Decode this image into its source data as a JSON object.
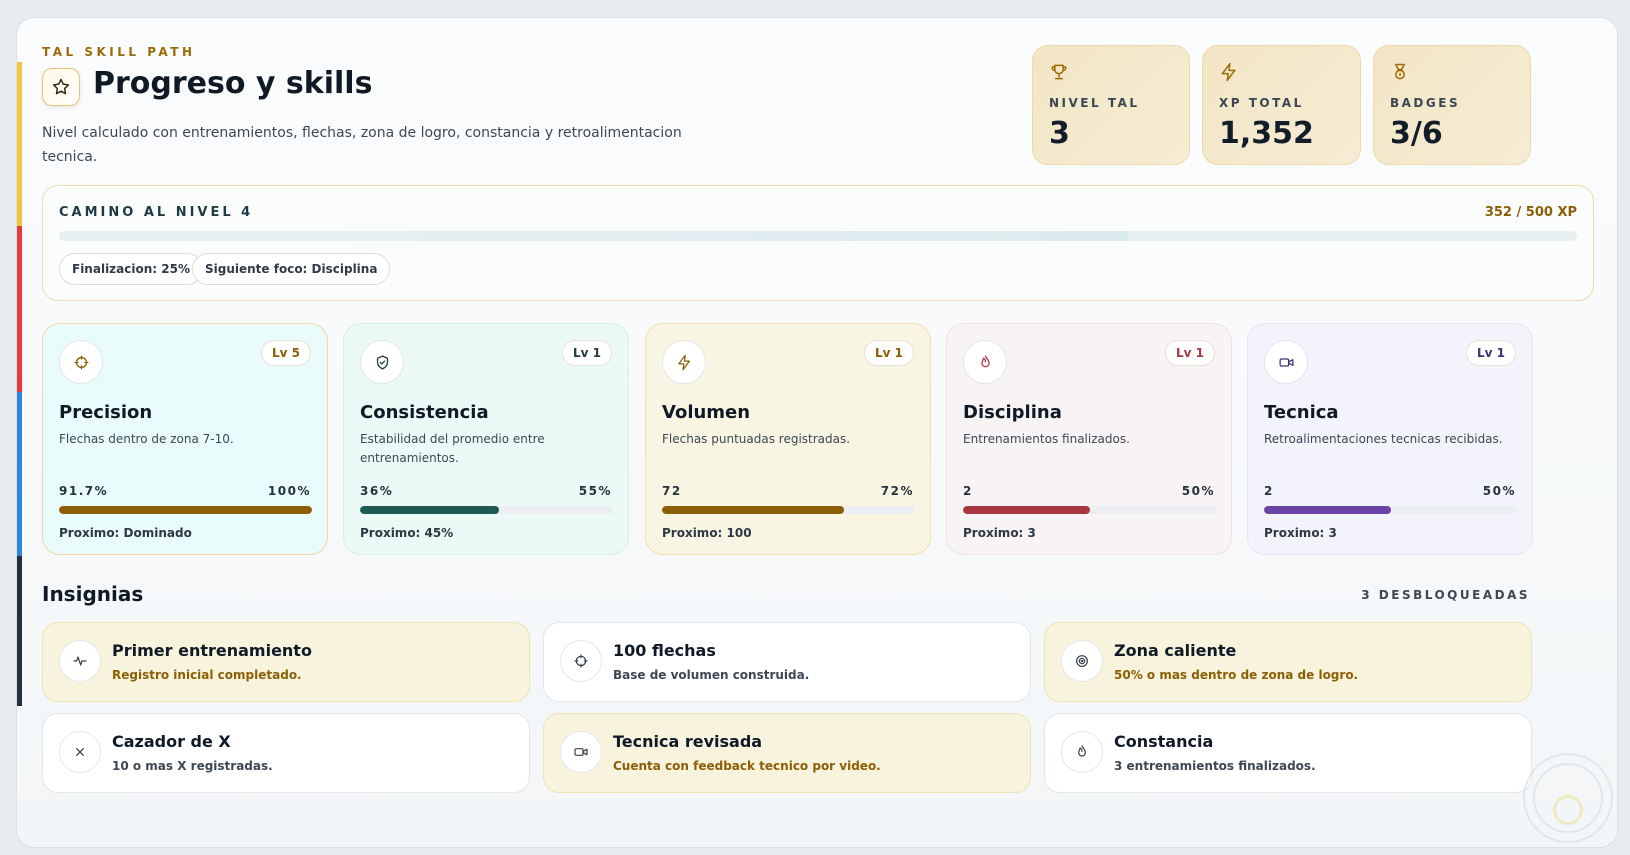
{
  "header": {
    "kicker": "TAL SKILL PATH",
    "title": "Progreso y skills",
    "subtitle": "Nivel calculado con entrenamientos, flechas, zona de logro, constancia y retroalimentacion tecnica."
  },
  "stats": [
    {
      "icon": "trophy-icon",
      "label": "NIVEL TAL",
      "value": "3"
    },
    {
      "icon": "bolt-icon",
      "label": "XP TOTAL",
      "value": "1,352"
    },
    {
      "icon": "medal-icon",
      "label": "BADGES",
      "value": "3/6"
    }
  ],
  "path": {
    "label": "CAMINO AL NIVEL 4",
    "xp": "352 / 500 XP",
    "progress": 0.704,
    "chips": [
      "Finalizacion: 25%",
      "Siguiente foco: Disciplina"
    ]
  },
  "skills": [
    {
      "icon": "crosshair-icon",
      "level": "Lv 5",
      "name": "Precision",
      "desc": "Flechas dentro de zona 7-10.",
      "value": "91.7%",
      "pct_label": "100%",
      "pct": 1.0,
      "next": "Proximo: Dominado",
      "accent": "#8c5e06",
      "bg": "#eafbfb",
      "border": "#efd79e",
      "lv_color": "#8c5e06"
    },
    {
      "icon": "shield-icon",
      "level": "Lv 1",
      "name": "Consistencia",
      "desc": "Estabilidad del promedio entre entrenamientos.",
      "value": "36%",
      "pct_label": "55%",
      "pct": 0.55,
      "next": "Proximo: 45%",
      "accent": "#1f5a55",
      "bg": "#ecfaf7",
      "border": "#d4efe9",
      "lv_color": "#1f3a44"
    },
    {
      "icon": "bolt-icon",
      "level": "Lv 1",
      "name": "Volumen",
      "desc": "Flechas puntuadas registradas.",
      "value": "72",
      "pct_label": "72%",
      "pct": 0.72,
      "next": "Proximo: 100",
      "accent": "#8c5e06",
      "bg": "#f8f6e2",
      "border": "#f0e2ac",
      "lv_color": "#8c5e06"
    },
    {
      "icon": "flame-icon",
      "level": "Lv 1",
      "name": "Disciplina",
      "desc": "Entrenamientos finalizados.",
      "value": "2",
      "pct_label": "50%",
      "pct": 0.5,
      "next": "Proximo: 3",
      "accent": "#a93640",
      "bg": "#f8f3f4",
      "border": "#f0e2e4",
      "lv_color": "#a93640"
    },
    {
      "icon": "video-icon",
      "level": "Lv 1",
      "name": "Tecnica",
      "desc": "Retroalimentaciones tecnicas recibidas.",
      "value": "2",
      "pct_label": "50%",
      "pct": 0.5,
      "next": "Proximo: 3",
      "accent": "#6a45a6",
      "bg": "#f3f3fb",
      "border": "#e6e6f4",
      "lv_color": "#3d3278"
    }
  ],
  "insignias": {
    "title": "Insignias",
    "count": "3 DESBLOQUEADAS",
    "items": [
      {
        "icon": "activity-icon",
        "name": "Primer entrenamiento",
        "desc": "Registro inicial completado.",
        "unlocked": true
      },
      {
        "icon": "crosshair-icon",
        "name": "100 flechas",
        "desc": "Base de volumen construida.",
        "unlocked": false
      },
      {
        "icon": "target-icon",
        "name": "Zona caliente",
        "desc": "50% o mas dentro de zona de logro.",
        "unlocked": true
      },
      {
        "icon": "x-icon",
        "name": "Cazador de X",
        "desc": "10 o mas X registradas.",
        "unlocked": false
      },
      {
        "icon": "video-icon",
        "name": "Tecnica revisada",
        "desc": "Cuenta con feedback tecnico por video.",
        "unlocked": true
      },
      {
        "icon": "flame-icon",
        "name": "Constancia",
        "desc": "3 entrenamientos finalizados.",
        "unlocked": false
      }
    ]
  }
}
